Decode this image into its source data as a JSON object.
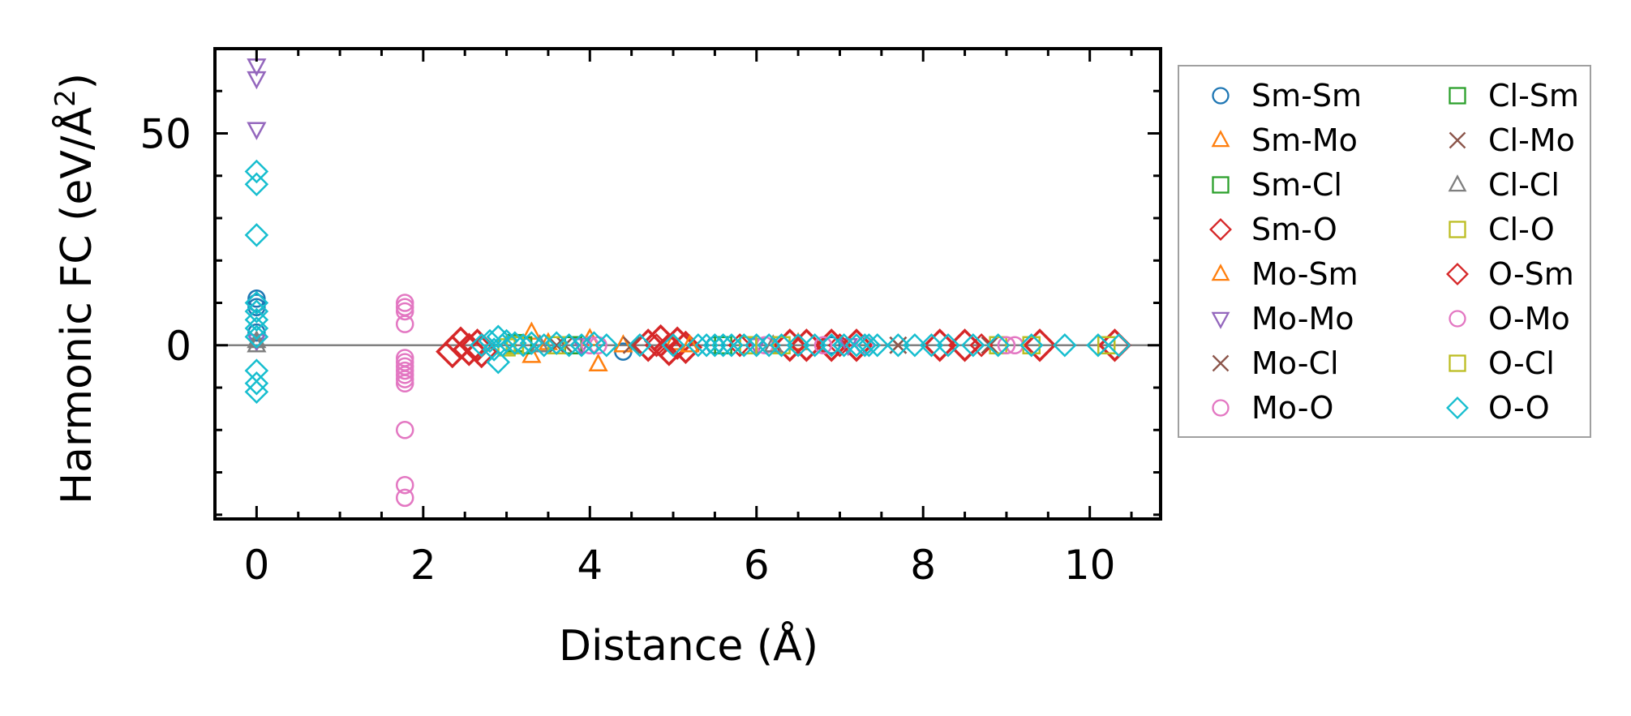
{
  "chart_data": {
    "type": "scatter",
    "title": "",
    "xlabel": "Distance (Å)",
    "ylabel_main": "Harmonic FC (eV/Å",
    "ylabel_sup": "2",
    "ylabel_close": ")",
    "xlim": [
      -0.5,
      10.85
    ],
    "ylim": [
      -41,
      70
    ],
    "x_ticks": [
      0,
      2,
      4,
      6,
      8,
      10
    ],
    "x_tick_labels": [
      "0",
      "2",
      "4",
      "6",
      "8",
      "10"
    ],
    "y_ticks": [
      0,
      50
    ],
    "y_tick_labels": [
      "0",
      "50"
    ],
    "zero_line": 0,
    "legend_position": "right, outside",
    "series": [
      {
        "name": "Sm-Sm",
        "marker": "circle",
        "color": "#1f77b4",
        "size": "small",
        "points": [
          [
            0,
            11
          ],
          [
            0,
            10
          ],
          [
            0,
            9
          ],
          [
            0,
            3
          ],
          [
            4.4,
            -1.5
          ],
          [
            5.5,
            0
          ],
          [
            6.9,
            0
          ]
        ]
      },
      {
        "name": "Sm-Mo",
        "marker": "triangle-up",
        "color": "#ff7f0e",
        "size": "small",
        "points": [
          [
            3.3,
            3
          ],
          [
            3.3,
            -2.5
          ],
          [
            4.1,
            -4.5
          ],
          [
            4.0,
            1.5
          ],
          [
            5.0,
            0.5
          ],
          [
            6.5,
            0.5
          ]
        ]
      },
      {
        "name": "Sm-Cl",
        "marker": "square",
        "color": "#2ca02c",
        "size": "small",
        "points": [
          [
            3.1,
            0.5
          ],
          [
            3.8,
            0
          ],
          [
            5.9,
            0
          ]
        ]
      },
      {
        "name": "Sm-O",
        "marker": "diamond",
        "color": "#d62728",
        "size": "large",
        "points": [
          [
            2.35,
            -1.5
          ],
          [
            2.45,
            0.5
          ],
          [
            2.55,
            -1
          ],
          [
            2.65,
            0
          ],
          [
            2.7,
            -1.5
          ],
          [
            4.7,
            0
          ],
          [
            4.85,
            1
          ],
          [
            4.95,
            -1
          ],
          [
            5.05,
            0.5
          ],
          [
            5.15,
            -0.5
          ],
          [
            6.4,
            0
          ],
          [
            6.6,
            0
          ],
          [
            6.9,
            0
          ],
          [
            7.2,
            0
          ],
          [
            8.2,
            0
          ],
          [
            8.5,
            0
          ],
          [
            9.4,
            0
          ],
          [
            10.3,
            0
          ]
        ]
      },
      {
        "name": "Mo-Sm",
        "marker": "triangle-up",
        "color": "#ff7f0e",
        "size": "small",
        "points": [
          [
            3.5,
            0.5
          ],
          [
            4.4,
            0
          ],
          [
            5.2,
            0
          ]
        ]
      },
      {
        "name": "Mo-Mo",
        "marker": "triangle-down",
        "color": "#9467bd",
        "size": "small",
        "points": [
          [
            0,
            66
          ],
          [
            0,
            63
          ],
          [
            0,
            51
          ],
          [
            0,
            1
          ],
          [
            3.9,
            0
          ],
          [
            6.0,
            0
          ],
          [
            7.1,
            0
          ]
        ]
      },
      {
        "name": "Mo-Cl",
        "marker": "x",
        "color": "#8c564b",
        "size": "small",
        "points": [
          [
            3.6,
            0
          ],
          [
            4.5,
            0
          ],
          [
            7.7,
            0
          ]
        ]
      },
      {
        "name": "Mo-O",
        "marker": "circle",
        "color": "#e377c2",
        "size": "small",
        "points": [
          [
            1.78,
            10
          ],
          [
            1.78,
            9
          ],
          [
            1.78,
            8
          ],
          [
            1.78,
            5
          ],
          [
            1.78,
            -3
          ],
          [
            1.78,
            -4
          ],
          [
            1.78,
            -5
          ],
          [
            1.78,
            -6
          ],
          [
            1.78,
            -7
          ],
          [
            1.78,
            -8
          ],
          [
            1.78,
            -9
          ],
          [
            1.78,
            -20
          ],
          [
            1.78,
            -33
          ],
          [
            1.78,
            -36
          ],
          [
            4.0,
            0
          ],
          [
            6.1,
            0
          ],
          [
            7.3,
            0
          ],
          [
            9.1,
            0
          ]
        ]
      },
      {
        "name": "Cl-Sm",
        "marker": "square",
        "color": "#2ca02c",
        "size": "small",
        "points": [
          [
            3.2,
            0
          ],
          [
            5.6,
            0
          ]
        ]
      },
      {
        "name": "Cl-Mo",
        "marker": "x",
        "color": "#8c564b",
        "size": "small",
        "points": [
          [
            3.7,
            0
          ],
          [
            7.7,
            0
          ],
          [
            8.8,
            0
          ]
        ]
      },
      {
        "name": "Cl-Cl",
        "marker": "triangle-up",
        "color": "#7f7f7f",
        "size": "small",
        "points": [
          [
            0,
            0
          ],
          [
            0,
            1
          ],
          [
            3.4,
            0
          ],
          [
            6.2,
            0
          ]
        ]
      },
      {
        "name": "Cl-O",
        "marker": "square",
        "color": "#bcbd22",
        "size": "small",
        "points": [
          [
            3.0,
            -0.5
          ],
          [
            3.6,
            0
          ],
          [
            5.9,
            0
          ],
          [
            8.9,
            0
          ],
          [
            10.2,
            0
          ]
        ]
      },
      {
        "name": "O-Sm",
        "marker": "diamond",
        "color": "#d62728",
        "size": "small",
        "points": [
          [
            4.8,
            0
          ],
          [
            5.8,
            0
          ],
          [
            7.0,
            0
          ],
          [
            8.7,
            0
          ]
        ]
      },
      {
        "name": "O-Mo",
        "marker": "circle",
        "color": "#e377c2",
        "size": "small",
        "points": [
          [
            4.1,
            0
          ],
          [
            6.8,
            0
          ],
          [
            9.0,
            0
          ]
        ]
      },
      {
        "name": "O-Cl",
        "marker": "square",
        "color": "#bcbd22",
        "size": "small",
        "points": [
          [
            3.1,
            0
          ],
          [
            6.3,
            0
          ],
          [
            9.3,
            0
          ]
        ]
      },
      {
        "name": "O-O",
        "marker": "diamond",
        "color": "#17becf",
        "size": "small",
        "points": [
          [
            0,
            41
          ],
          [
            0,
            38
          ],
          [
            0,
            26
          ],
          [
            0,
            10
          ],
          [
            0,
            8
          ],
          [
            0,
            6
          ],
          [
            0,
            4
          ],
          [
            0,
            2
          ],
          [
            0,
            -6
          ],
          [
            0,
            -9
          ],
          [
            0,
            -11
          ],
          [
            2.7,
            0
          ],
          [
            2.8,
            1
          ],
          [
            2.85,
            -1
          ],
          [
            2.9,
            2
          ],
          [
            2.95,
            0
          ],
          [
            2.9,
            -4
          ],
          [
            3.0,
            1
          ],
          [
            3.1,
            0.5
          ],
          [
            3.2,
            0
          ],
          [
            3.3,
            0.5
          ],
          [
            3.45,
            0
          ],
          [
            3.6,
            0.5
          ],
          [
            3.75,
            0
          ],
          [
            3.9,
            0
          ],
          [
            4.05,
            0.5
          ],
          [
            4.2,
            0
          ],
          [
            4.6,
            0
          ],
          [
            5.0,
            0
          ],
          [
            5.3,
            0
          ],
          [
            5.4,
            0
          ],
          [
            5.5,
            0
          ],
          [
            5.6,
            0
          ],
          [
            5.7,
            0
          ],
          [
            5.85,
            0
          ],
          [
            6.0,
            0
          ],
          [
            6.15,
            0
          ],
          [
            6.3,
            0
          ],
          [
            6.5,
            0
          ],
          [
            6.7,
            0
          ],
          [
            6.9,
            0
          ],
          [
            7.05,
            0
          ],
          [
            7.2,
            0
          ],
          [
            7.3,
            0
          ],
          [
            7.35,
            0
          ],
          [
            7.45,
            0
          ],
          [
            7.7,
            0
          ],
          [
            7.9,
            0
          ],
          [
            8.1,
            0
          ],
          [
            8.3,
            0
          ],
          [
            8.6,
            0
          ],
          [
            8.9,
            0
          ],
          [
            9.3,
            0
          ],
          [
            9.7,
            0
          ],
          [
            10.1,
            0
          ],
          [
            10.35,
            0
          ]
        ]
      }
    ]
  }
}
